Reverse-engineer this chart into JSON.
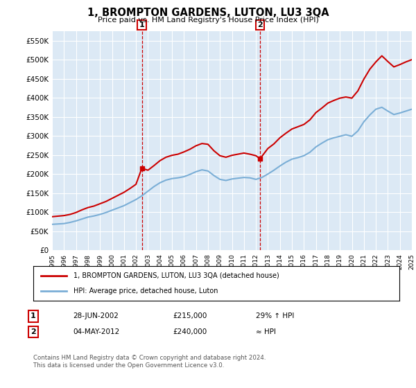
{
  "title": "1, BROMPTON GARDENS, LUTON, LU3 3QA",
  "subtitle": "Price paid vs. HM Land Registry's House Price Index (HPI)",
  "ylim": [
    0,
    575000
  ],
  "yticks": [
    0,
    50000,
    100000,
    150000,
    200000,
    250000,
    300000,
    350000,
    400000,
    450000,
    500000,
    550000
  ],
  "ytick_labels": [
    "£0",
    "£50K",
    "£100K",
    "£150K",
    "£200K",
    "£250K",
    "£300K",
    "£350K",
    "£400K",
    "£450K",
    "£500K",
    "£550K"
  ],
  "bg_color": "#dce9f5",
  "grid_color": "#ffffff",
  "red_color": "#cc0000",
  "blue_color": "#7aaed6",
  "marker1_year": 2002.49,
  "marker2_year": 2012.34,
  "marker1_y": 215000,
  "marker2_y": 240000,
  "legend_label_red": "1, BROMPTON GARDENS, LUTON, LU3 3QA (detached house)",
  "legend_label_blue": "HPI: Average price, detached house, Luton",
  "table_row1": [
    "1",
    "28-JUN-2002",
    "£215,000",
    "29% ↑ HPI"
  ],
  "table_row2": [
    "2",
    "04-MAY-2012",
    "£240,000",
    "≈ HPI"
  ],
  "footer": "Contains HM Land Registry data © Crown copyright and database right 2024.\nThis data is licensed under the Open Government Licence v3.0.",
  "hpi_x": [
    1995,
    1995.5,
    1996,
    1996.5,
    1997,
    1997.5,
    1998,
    1998.5,
    1999,
    1999.5,
    2000,
    2000.5,
    2001,
    2001.5,
    2002,
    2002.5,
    2003,
    2003.5,
    2004,
    2004.5,
    2005,
    2005.5,
    2006,
    2006.5,
    2007,
    2007.5,
    2008,
    2008.5,
    2009,
    2009.5,
    2010,
    2010.5,
    2011,
    2011.5,
    2012,
    2012.5,
    2013,
    2013.5,
    2014,
    2014.5,
    2015,
    2015.5,
    2016,
    2016.5,
    2017,
    2017.5,
    2018,
    2018.5,
    2019,
    2019.5,
    2020,
    2020.5,
    2021,
    2021.5,
    2022,
    2022.5,
    2023,
    2023.5,
    2024,
    2024.5,
    2025
  ],
  "hpi_y": [
    68000,
    69000,
    70000,
    73000,
    77000,
    82000,
    87000,
    90000,
    94000,
    99000,
    105000,
    111000,
    117000,
    125000,
    133000,
    143000,
    155000,
    167000,
    177000,
    184000,
    188000,
    190000,
    193000,
    199000,
    206000,
    211000,
    208000,
    196000,
    186000,
    183000,
    187000,
    189000,
    191000,
    190000,
    186000,
    191000,
    200000,
    210000,
    221000,
    231000,
    239000,
    243000,
    248000,
    257000,
    271000,
    281000,
    290000,
    295000,
    299000,
    303000,
    299000,
    313000,
    337000,
    355000,
    370000,
    375000,
    365000,
    356000,
    360000,
    365000,
    370000
  ],
  "red_x": [
    1995,
    1995.5,
    1996,
    1996.5,
    1997,
    1997.5,
    1998,
    1998.5,
    1999,
    1999.5,
    2000,
    2000.5,
    2001,
    2001.5,
    2002,
    2002.49,
    2003,
    2003.5,
    2004,
    2004.5,
    2005,
    2005.5,
    2006,
    2006.5,
    2007,
    2007.5,
    2008,
    2008.5,
    2009,
    2009.5,
    2010,
    2010.5,
    2011,
    2011.5,
    2012,
    2012.34,
    2013,
    2013.5,
    2014,
    2014.5,
    2015,
    2015.5,
    2016,
    2016.5,
    2017,
    2017.5,
    2018,
    2018.5,
    2019,
    2019.5,
    2020,
    2020.5,
    2021,
    2021.5,
    2022,
    2022.5,
    2023,
    2023.5,
    2024,
    2024.5,
    2025
  ],
  "red_y": [
    88000,
    89500,
    91000,
    94000,
    99000,
    106000,
    112000,
    116000,
    122000,
    128000,
    136000,
    144000,
    152000,
    162000,
    173000,
    215000,
    210000,
    222000,
    235000,
    244000,
    249000,
    252000,
    258000,
    265000,
    274000,
    280000,
    278000,
    261000,
    248000,
    244000,
    249000,
    252000,
    255000,
    252000,
    248000,
    240000,
    267000,
    279000,
    295000,
    307000,
    318000,
    324000,
    330000,
    342000,
    361000,
    373000,
    386000,
    393000,
    399000,
    402000,
    399000,
    418000,
    449000,
    475000,
    494000,
    510000,
    495000,
    481000,
    487000,
    494000,
    500000
  ],
  "xmin": 1995,
  "xmax": 2025
}
